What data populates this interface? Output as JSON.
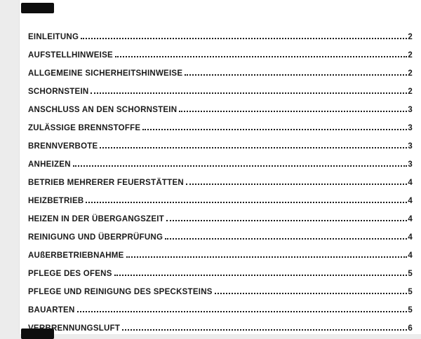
{
  "theme": {
    "page_background": "#ffffff",
    "gutter_color": "#ececec",
    "text_color": "#1a1a1a",
    "redaction_color": "#0e0e0e"
  },
  "redactions": {
    "header_block": "redacted",
    "footer_block": "redacted"
  },
  "toc": {
    "entries": [
      {
        "label": "EINLEITUNG",
        "page": "2"
      },
      {
        "label": "AUFSTELLHINWEISE",
        "page": "2"
      },
      {
        "label": "ALLGEMEINE SICHERHEITSHINWEISE",
        "page": "2"
      },
      {
        "label": "SCHORNSTEIN",
        "page": "2"
      },
      {
        "label": "ANSCHLUSS AN DEN SCHORNSTEIN",
        "page": "3"
      },
      {
        "label": "ZULÄSSIGE BRENNSTOFFE",
        "page": "3"
      },
      {
        "label": "BRENNVERBOTE",
        "page": "3"
      },
      {
        "label": "ANHEIZEN",
        "page": "3"
      },
      {
        "label": "BETRIEB MEHRERER FEUERSTÄTTEN",
        "page": "4"
      },
      {
        "label": "HEIZBETRIEB",
        "page": "4"
      },
      {
        "label": "HEIZEN IN DER ÜBERGANGSZEIT",
        "page": "4"
      },
      {
        "label": "REINIGUNG UND ÜBERPRÜFUNG",
        "page": "4"
      },
      {
        "label": "AUßERBETRIEBNAHME",
        "page": "4"
      },
      {
        "label": "PFLEGE DES OFENS",
        "page": "5"
      },
      {
        "label": "PFLEGE UND REINIGUNG DES SPECKSTEINS",
        "page": "5"
      },
      {
        "label": "BAUARTEN",
        "page": "5"
      },
      {
        "label": "VERBRENNUNGSLUFT",
        "page": "6"
      }
    ]
  }
}
